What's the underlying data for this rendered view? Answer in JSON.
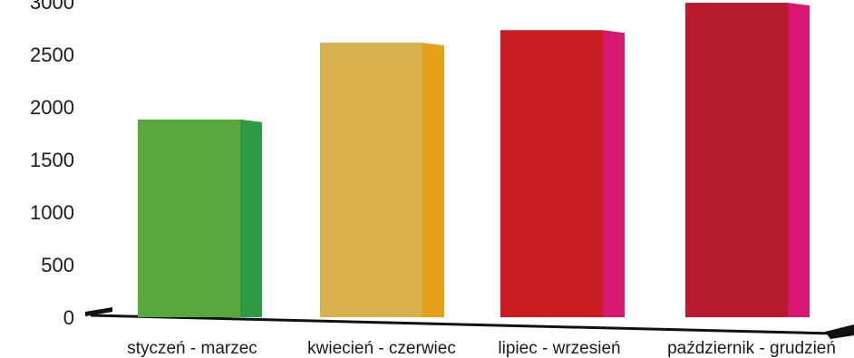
{
  "chart_data": {
    "type": "bar",
    "categories": [
      "styczeń - marzec",
      "kwiecień - czerwiec",
      "lipiec - wrzesień",
      "październik - grudzień"
    ],
    "values": [
      1880,
      2610,
      2730,
      2990
    ],
    "yticks": [
      "0",
      "500",
      "1000",
      "1500",
      "2000",
      "2500",
      "3000"
    ],
    "ylim": [
      0,
      3000
    ],
    "colors": {
      "front": [
        "#5aa83c",
        "#d9b04e",
        "#c81e22",
        "#b81b2e"
      ],
      "side": [
        "#2e9a44",
        "#e6a11a",
        "#d81770",
        "#d81770"
      ]
    }
  }
}
